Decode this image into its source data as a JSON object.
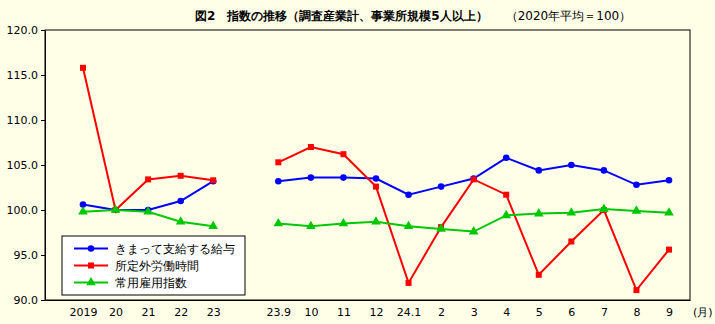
{
  "chart_data": {
    "type": "line",
    "title": "図2　指数の推移（調査産業計、事業所規模5人以上）",
    "subtitle": "（2020年平均＝100）",
    "xlabel": "(月)",
    "categories": [
      "2019",
      "20",
      "21",
      "22",
      "23",
      null,
      "23.9",
      "10",
      "11",
      "12",
      "24.1",
      "2",
      "3",
      "4",
      "5",
      "6",
      "7",
      "8",
      "9"
    ],
    "series": [
      {
        "name": "きまって支給する給与",
        "color": "#0000ff",
        "marker": "circle",
        "values": [
          100.6,
          100.0,
          100.0,
          101.0,
          103.2,
          null,
          103.2,
          103.6,
          103.6,
          103.5,
          101.7,
          102.6,
          103.5,
          105.8,
          104.4,
          105.0,
          104.4,
          102.8,
          103.3
        ]
      },
      {
        "name": "所定外労働時間",
        "color": "#ff0000",
        "marker": "square",
        "values": [
          115.8,
          100.0,
          103.4,
          103.8,
          103.3,
          null,
          105.3,
          107.0,
          106.2,
          102.6,
          91.9,
          98.1,
          103.4,
          101.7,
          92.8,
          96.5,
          100.0,
          91.1,
          95.6
        ]
      },
      {
        "name": "常用雇用指数",
        "color": "#00c800",
        "marker": "triangle",
        "values": [
          99.8,
          100.0,
          99.8,
          98.7,
          98.2,
          null,
          98.5,
          98.2,
          98.5,
          98.7,
          98.2,
          97.9,
          97.6,
          99.4,
          99.6,
          99.7,
          100.1,
          99.9,
          99.7
        ]
      }
    ],
    "ylim": [
      90,
      120
    ],
    "yticks": [
      {
        "value": 90,
        "label": "90.0"
      },
      {
        "value": 95,
        "label": "95.0"
      },
      {
        "value": 100,
        "label": "100.0"
      },
      {
        "value": 105,
        "label": "105.0"
      },
      {
        "value": 110,
        "label": "110.0"
      },
      {
        "value": 115,
        "label": "115.0"
      },
      {
        "value": 120,
        "label": "120.0"
      }
    ],
    "grid": false,
    "legend": "lower left"
  }
}
